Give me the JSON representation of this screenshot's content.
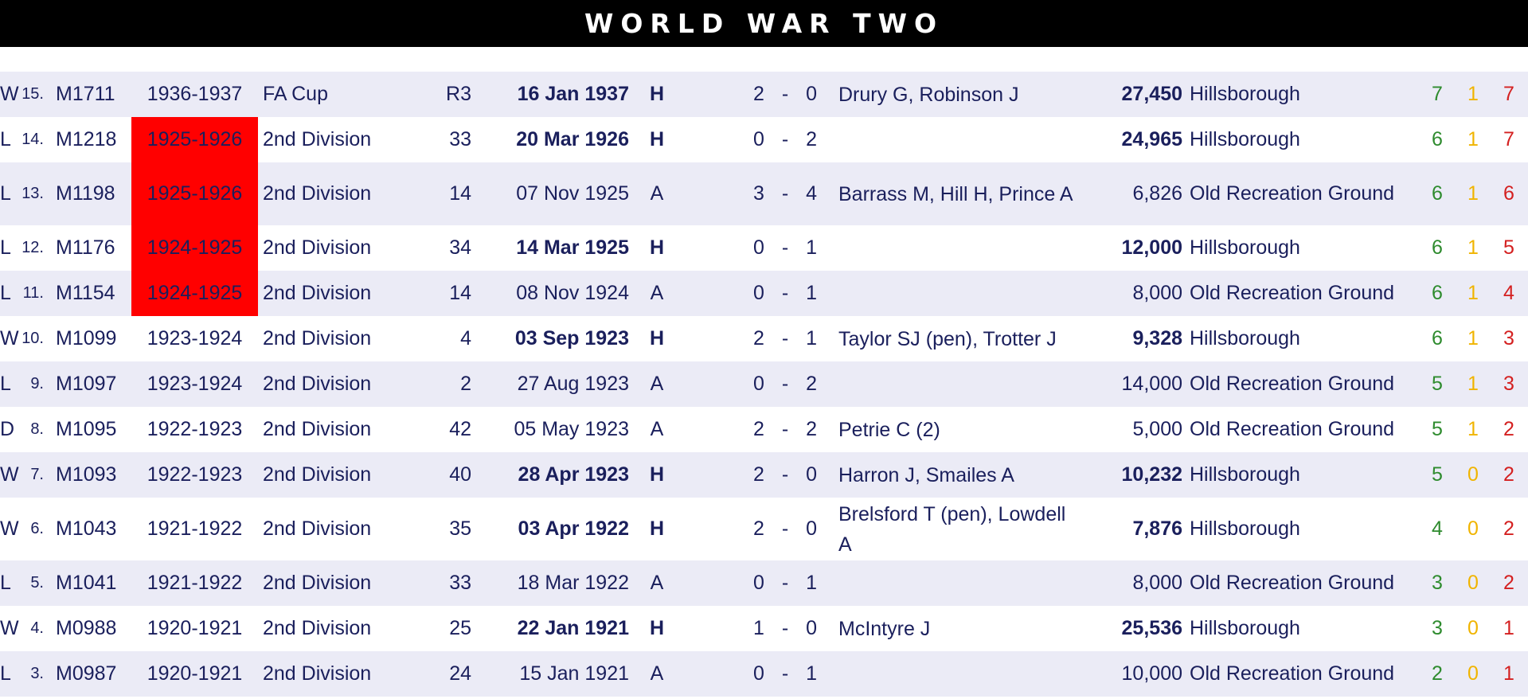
{
  "title": "WORLD WAR TWO",
  "colors": {
    "win": "#00a550",
    "loss": "#ff0000",
    "draw": "#ffff00",
    "highlight": "#ff0000",
    "wins_text": "#2e8b2e",
    "draws_text": "#f0b400",
    "losses_text": "#d42020"
  },
  "rows": [
    {
      "num": "15.",
      "code": "M1711",
      "season": "1936-1937",
      "season_hl": false,
      "comp": "FA Cup",
      "round": "R3",
      "date": "16 Jan 1937",
      "ha": "H",
      "result": "W",
      "gf": "2",
      "sep": "-",
      "ga": "0",
      "scorers": "Drury G, Robinson J",
      "att": "27,450",
      "venue": "Hillsborough",
      "w": "7",
      "d": "1",
      "l": "7"
    },
    {
      "num": "14.",
      "code": "M1218",
      "season": "1925-1926",
      "season_hl": true,
      "comp": "2nd Division",
      "round": "33",
      "date": "20 Mar 1926",
      "ha": "H",
      "result": "L",
      "gf": "0",
      "sep": "-",
      "ga": "2",
      "scorers": "",
      "att": "24,965",
      "venue": "Hillsborough",
      "w": "6",
      "d": "1",
      "l": "7"
    },
    {
      "num": "13.",
      "code": "M1198",
      "season": "1925-1926",
      "season_hl": true,
      "comp": "2nd Division",
      "round": "14",
      "date": "07 Nov 1925",
      "ha": "A",
      "result": "L",
      "gf": "3",
      "sep": "-",
      "ga": "4",
      "scorers": "Barrass M, Hill H, Prince A",
      "att": "6,826",
      "venue": "Old Recreation Ground",
      "w": "6",
      "d": "1",
      "l": "6"
    },
    {
      "num": "12.",
      "code": "M1176",
      "season": "1924-1925",
      "season_hl": true,
      "comp": "2nd Division",
      "round": "34",
      "date": "14 Mar 1925",
      "ha": "H",
      "result": "L",
      "gf": "0",
      "sep": "-",
      "ga": "1",
      "scorers": "",
      "att": "12,000",
      "venue": "Hillsborough",
      "w": "6",
      "d": "1",
      "l": "5"
    },
    {
      "num": "11.",
      "code": "M1154",
      "season": "1924-1925",
      "season_hl": true,
      "comp": "2nd Division",
      "round": "14",
      "date": "08 Nov 1924",
      "ha": "A",
      "result": "L",
      "gf": "0",
      "sep": "-",
      "ga": "1",
      "scorers": "",
      "att": "8,000",
      "venue": "Old Recreation Ground",
      "w": "6",
      "d": "1",
      "l": "4"
    },
    {
      "num": "10.",
      "code": "M1099",
      "season": "1923-1924",
      "season_hl": false,
      "comp": "2nd Division",
      "round": "4",
      "date": "03 Sep 1923",
      "ha": "H",
      "result": "W",
      "gf": "2",
      "sep": "-",
      "ga": "1",
      "scorers": "Taylor SJ (pen), Trotter J",
      "att": "9,328",
      "venue": "Hillsborough",
      "w": "6",
      "d": "1",
      "l": "3"
    },
    {
      "num": "9.",
      "code": "M1097",
      "season": "1923-1924",
      "season_hl": false,
      "comp": "2nd Division",
      "round": "2",
      "date": "27 Aug 1923",
      "ha": "A",
      "result": "L",
      "gf": "0",
      "sep": "-",
      "ga": "2",
      "scorers": "",
      "att": "14,000",
      "venue": "Old Recreation Ground",
      "w": "5",
      "d": "1",
      "l": "3"
    },
    {
      "num": "8.",
      "code": "M1095",
      "season": "1922-1923",
      "season_hl": false,
      "comp": "2nd Division",
      "round": "42",
      "date": "05 May 1923",
      "ha": "A",
      "result": "D",
      "gf": "2",
      "sep": "-",
      "ga": "2",
      "scorers": "Petrie C (2)",
      "att": "5,000",
      "venue": "Old Recreation Ground",
      "w": "5",
      "d": "1",
      "l": "2"
    },
    {
      "num": "7.",
      "code": "M1093",
      "season": "1922-1923",
      "season_hl": false,
      "comp": "2nd Division",
      "round": "40",
      "date": "28 Apr 1923",
      "ha": "H",
      "result": "W",
      "gf": "2",
      "sep": "-",
      "ga": "0",
      "scorers": "Harron J, Smailes A",
      "att": "10,232",
      "venue": "Hillsborough",
      "w": "5",
      "d": "0",
      "l": "2"
    },
    {
      "num": "6.",
      "code": "M1043",
      "season": "1921-1922",
      "season_hl": false,
      "comp": "2nd Division",
      "round": "35",
      "date": "03 Apr 1922",
      "ha": "H",
      "result": "W",
      "gf": "2",
      "sep": "-",
      "ga": "0",
      "scorers": "Brelsford T (pen), Lowdell A",
      "att": "7,876",
      "venue": "Hillsborough",
      "w": "4",
      "d": "0",
      "l": "2"
    },
    {
      "num": "5.",
      "code": "M1041",
      "season": "1921-1922",
      "season_hl": false,
      "comp": "2nd Division",
      "round": "33",
      "date": "18 Mar 1922",
      "ha": "A",
      "result": "L",
      "gf": "0",
      "sep": "-",
      "ga": "1",
      "scorers": "",
      "att": "8,000",
      "venue": "Old Recreation Ground",
      "w": "3",
      "d": "0",
      "l": "2"
    },
    {
      "num": "4.",
      "code": "M0988",
      "season": "1920-1921",
      "season_hl": false,
      "comp": "2nd Division",
      "round": "25",
      "date": "22 Jan 1921",
      "ha": "H",
      "result": "W",
      "gf": "1",
      "sep": "-",
      "ga": "0",
      "scorers": "McIntyre J",
      "att": "25,536",
      "venue": "Hillsborough",
      "w": "3",
      "d": "0",
      "l": "1"
    },
    {
      "num": "3.",
      "code": "M0987",
      "season": "1920-1921",
      "season_hl": false,
      "comp": "2nd Division",
      "round": "24",
      "date": "15 Jan 1921",
      "ha": "A",
      "result": "L",
      "gf": "0",
      "sep": "-",
      "ga": "1",
      "scorers": "",
      "att": "10,000",
      "venue": "Old Recreation Ground",
      "w": "2",
      "d": "0",
      "l": "1"
    }
  ]
}
